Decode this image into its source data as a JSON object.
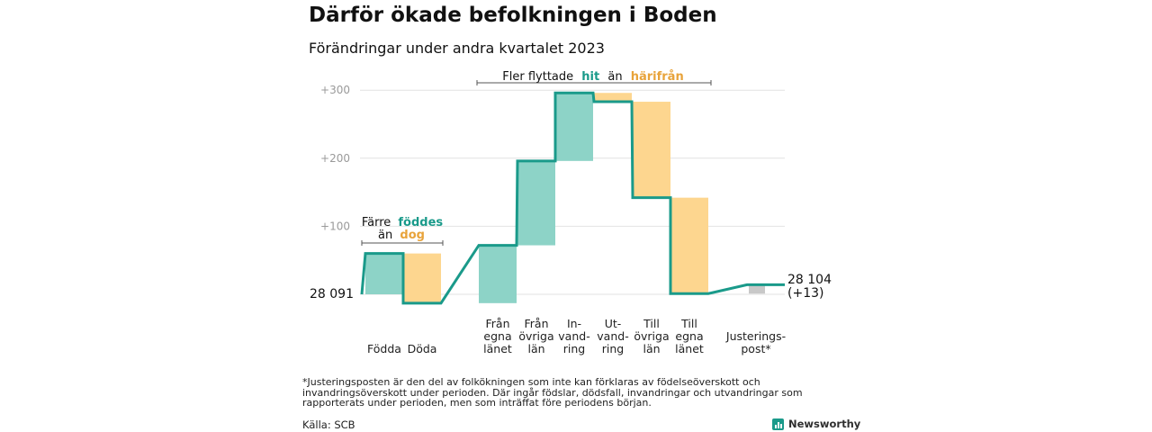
{
  "title": "Därför ökade befolkningen i Boden",
  "subtitle": "Förändringar under andra kvartalet 2023",
  "chart_data": {
    "type": "waterfall",
    "start_value": 28091,
    "start_label": "28  091",
    "end_value": 28104,
    "end_label": "28 104",
    "end_change_label": "(+13)",
    "y_ticks": [
      "+100",
      "+200",
      "+300"
    ],
    "y_tick_values": [
      100,
      200,
      300
    ],
    "ylim": [
      -20,
      320
    ],
    "categories": [
      {
        "lines": [
          "Födda"
        ],
        "change": 60
      },
      {
        "lines": [
          "Döda"
        ],
        "change": -73
      },
      {
        "lines": [
          "Från",
          "egna",
          "länet"
        ],
        "change": 85
      },
      {
        "lines": [
          "Från",
          "övriga",
          "län"
        ],
        "change": 124
      },
      {
        "lines": [
          "In-",
          "vand-",
          "ring"
        ],
        "change": 100
      },
      {
        "lines": [
          "Ut-",
          "vand-",
          "ring"
        ],
        "change": -13
      },
      {
        "lines": [
          "Till",
          "övriga",
          "län"
        ],
        "change": -141
      },
      {
        "lines": [
          "Till",
          "egna",
          "länet"
        ],
        "change": -141
      },
      {
        "lines": [
          "Justerings-",
          "post*"
        ],
        "change": 13
      }
    ],
    "colors": {
      "increase": "#8dd3c7",
      "decrease": "#fdd68f",
      "adjustment": "#c8c8c8",
      "line": "#1a9a8a",
      "grid": "#e2e2e2"
    },
    "annotations": {
      "left": {
        "line1": "Färre",
        "word1": "föddes",
        "line2": "än",
        "word2": "dog"
      },
      "top": {
        "prefix": "Fler flyttade",
        "word1": "hit",
        "middle": "än",
        "word2": "härifrån"
      }
    },
    "grid": true
  },
  "footnote": "*Justeringsposten är den del av folkökningen som inte kan förklaras av födelseöverskott och invandringsöverskott under perioden. Där ingår födslar, dödsfall, invandringar och utvandringar som rapporterats under perioden, men som inträffat före periodens början.",
  "source": "Källa: SCB",
  "brand": "Newsworthy"
}
